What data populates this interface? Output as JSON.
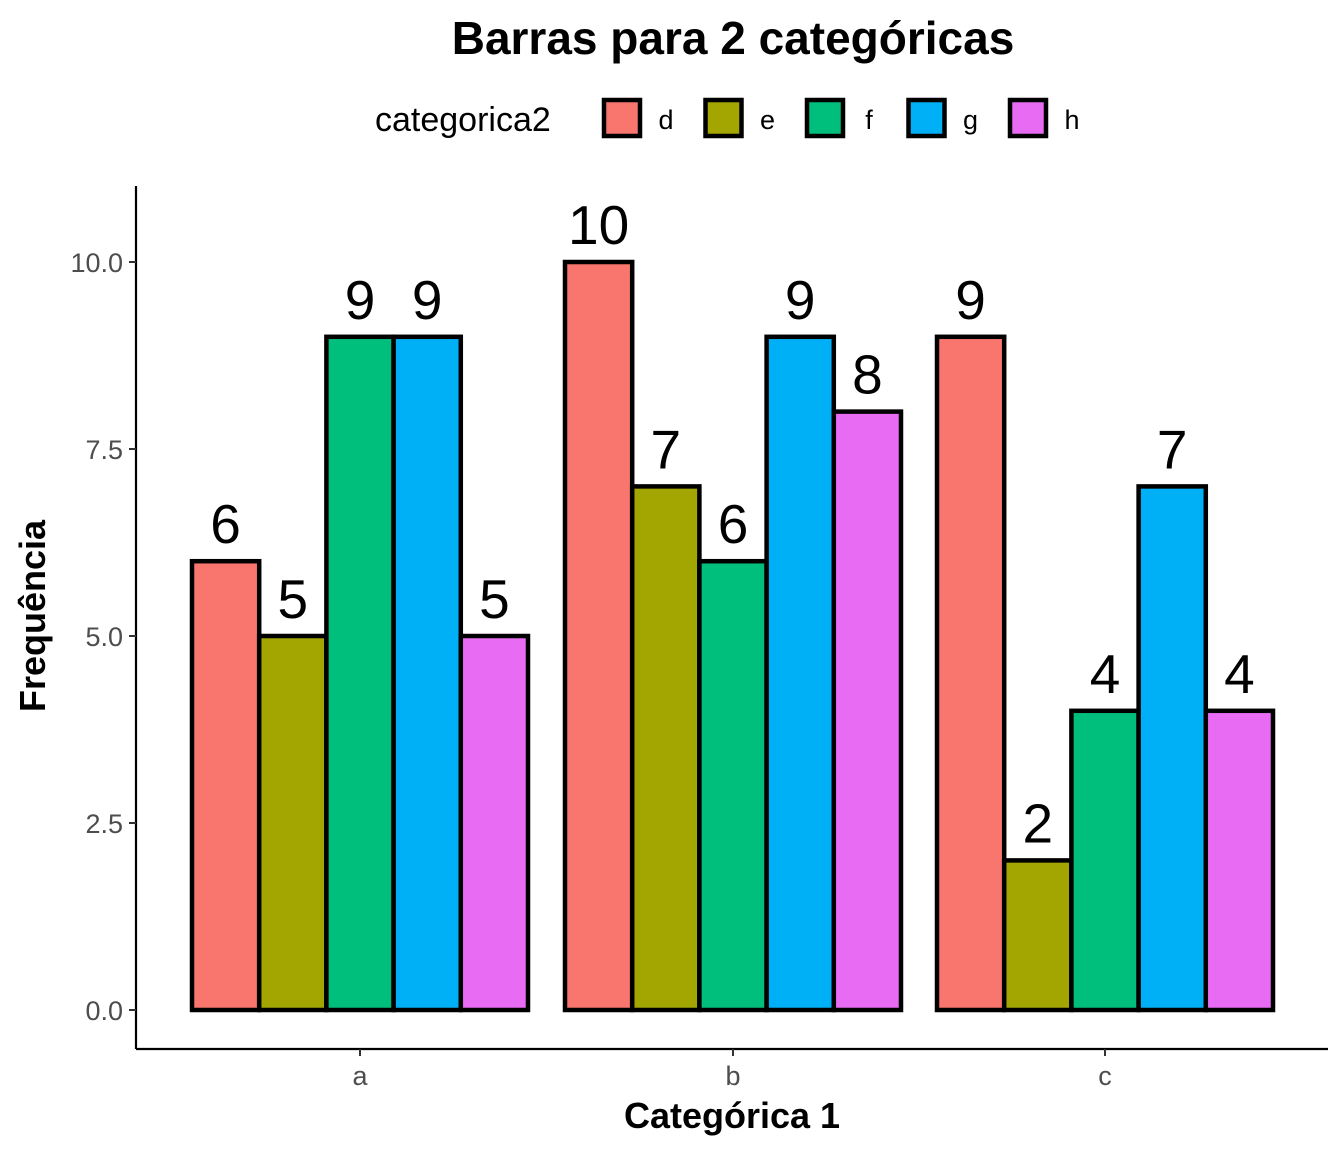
{
  "chart_data": {
    "type": "bar",
    "title": "Barras para 2 categóricas",
    "xlabel": "Categórica 1",
    "ylabel": "Frequência",
    "categories": [
      "a",
      "b",
      "c"
    ],
    "series": [
      {
        "name": "d",
        "color": "#F8766D",
        "values": [
          6,
          10,
          9
        ]
      },
      {
        "name": "e",
        "color": "#A3A500",
        "values": [
          5,
          7,
          2
        ]
      },
      {
        "name": "f",
        "color": "#00BF7D",
        "values": [
          9,
          6,
          4
        ]
      },
      {
        "name": "g",
        "color": "#00B0F6",
        "values": [
          9,
          9,
          7
        ]
      },
      {
        "name": "h",
        "color": "#E76BF3",
        "values": [
          5,
          8,
          4
        ]
      }
    ],
    "ylim": [
      -1.05,
      11.0
    ],
    "yticks": [
      0,
      2.5,
      5,
      7.5,
      10
    ],
    "ytick_labels": [
      "0.0",
      "2.5",
      "5.0",
      "7.5",
      "10.0"
    ],
    "grid": false,
    "legend": {
      "title": "categorica2",
      "position": "top"
    },
    "bar_outline_color": "#000000"
  }
}
